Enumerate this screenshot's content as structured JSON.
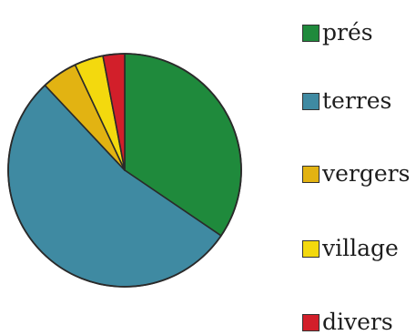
{
  "chart_data": {
    "type": "pie",
    "title": "",
    "legend_position": "right",
    "start_angle_deg": 0,
    "direction": "clockwise",
    "slices": [
      {
        "label": "prés",
        "value": 34.5,
        "color": "#1f8a3c"
      },
      {
        "label": "terres",
        "value": 53.5,
        "color": "#3f8aa2"
      },
      {
        "label": "vergers",
        "value": 5.0,
        "color": "#e2b312"
      },
      {
        "label": "village",
        "value": 4.0,
        "color": "#f3d90e"
      },
      {
        "label": "divers",
        "value": 3.0,
        "color": "#d21f2a"
      }
    ]
  }
}
